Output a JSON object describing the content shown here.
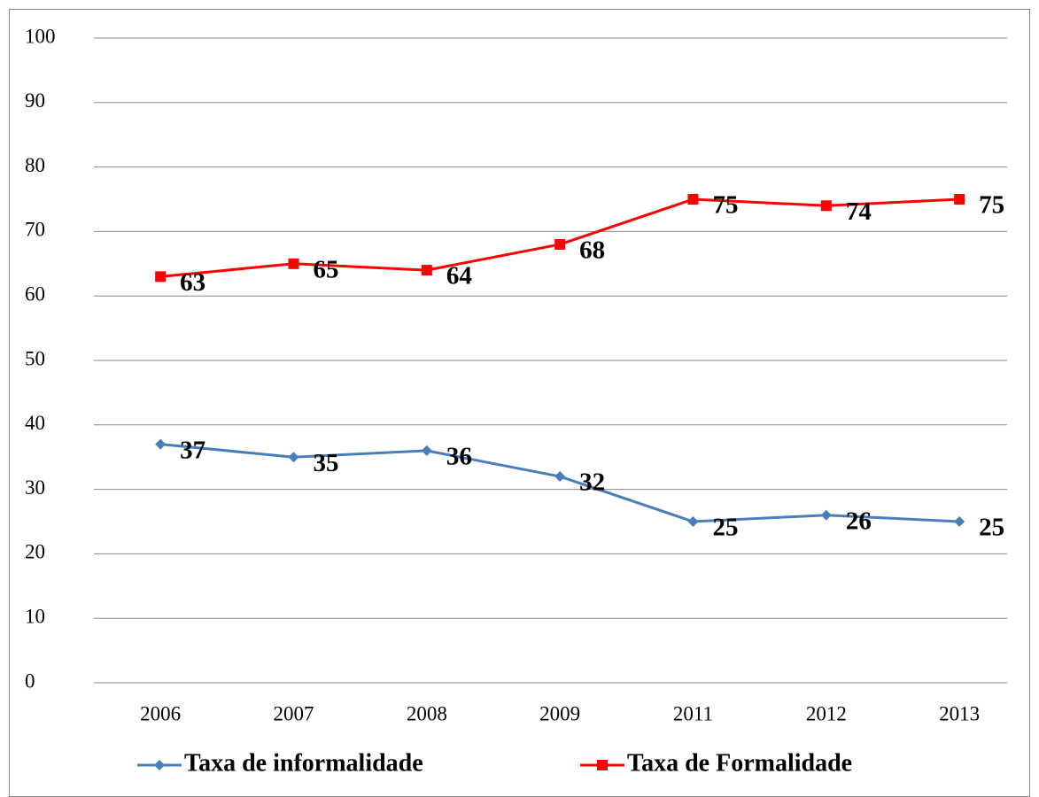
{
  "chart_data": {
    "type": "line",
    "categories": [
      "2006",
      "2007",
      "2008",
      "2009",
      "2011",
      "2012",
      "2013"
    ],
    "series": [
      {
        "name": "Taxa de informalidade",
        "color": "#4a7ebb",
        "marker": "diamond",
        "values": [
          37,
          35,
          36,
          32,
          25,
          26,
          25
        ]
      },
      {
        "name": "Taxa de Formalidade",
        "color": "#ff0000",
        "marker": "square",
        "values": [
          63,
          65,
          64,
          68,
          75,
          74,
          75
        ]
      }
    ],
    "ylim": [
      0,
      100
    ],
    "yticks": [
      0,
      10,
      20,
      30,
      40,
      50,
      60,
      70,
      80,
      90,
      100
    ],
    "grid": true,
    "legend": "bottom"
  }
}
